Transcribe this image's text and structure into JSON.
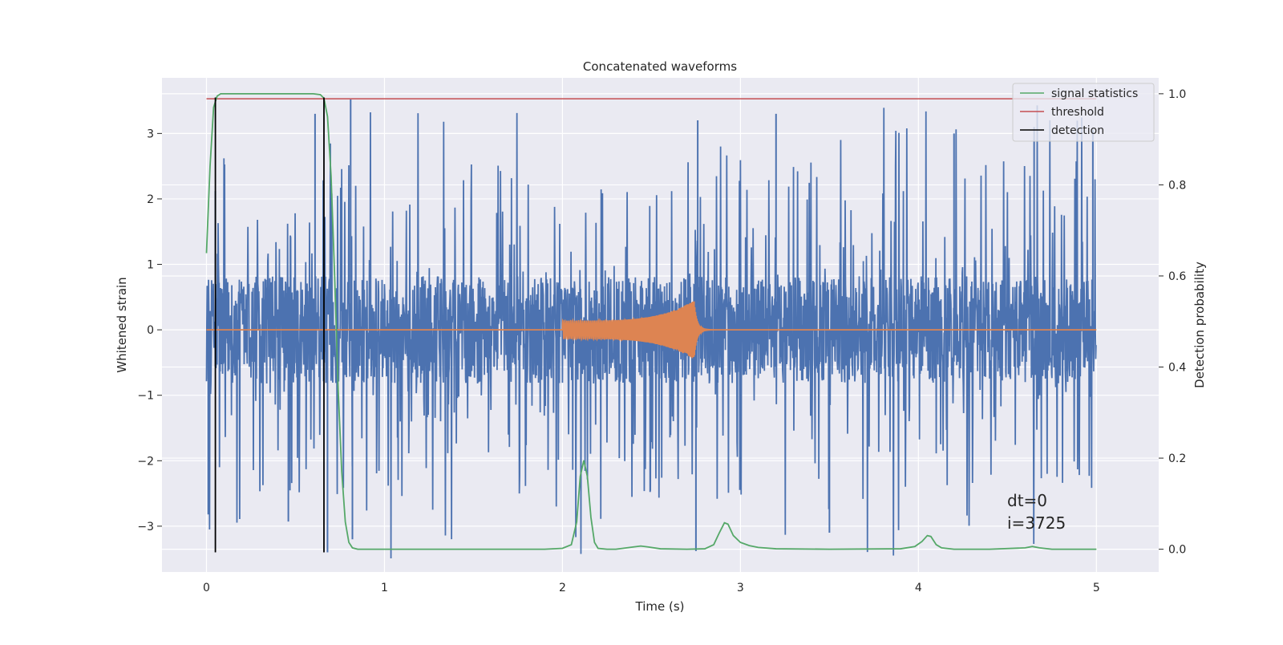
{
  "chart_data": {
    "type": "line",
    "title": "Concatenated waveforms",
    "xlabel": "Time (s)",
    "ylabel_left": "Whitened strain",
    "ylabel_right": "Detection probability",
    "xlim": [
      -0.25,
      5.35
    ],
    "ylim_left": [
      -3.7,
      3.85
    ],
    "ylim_right": [
      -0.05,
      1.035
    ],
    "x_ticks": [
      0,
      1,
      2,
      3,
      4,
      5
    ],
    "y_left_ticks": [
      -3,
      -2,
      -1,
      0,
      1,
      2,
      3
    ],
    "y_left_tick_labels": [
      "−3",
      "−2",
      "−1",
      "0",
      "1",
      "2",
      "3"
    ],
    "y_right_ticks": [
      0.0,
      0.2,
      0.4,
      0.6,
      0.8,
      1.0
    ],
    "y_right_tick_labels": [
      "0.0",
      "0.2",
      "0.4",
      "0.6",
      "0.8",
      "1.0"
    ],
    "grid": true,
    "legend_position": "top-right",
    "colors": {
      "strain": "#4c72b0",
      "injection": "#dd8452",
      "signal_statistics": "#55a868",
      "threshold": "#c44e52",
      "detection": "#000000",
      "plot_background": "#eaeaf2",
      "grid": "#ffffff"
    },
    "series": [
      {
        "name": "signal statistics",
        "axis": "right",
        "x": [
          0.0,
          0.02,
          0.04,
          0.06,
          0.08,
          0.1,
          0.2,
          0.4,
          0.6,
          0.64,
          0.66,
          0.68,
          0.7,
          0.72,
          0.74,
          0.76,
          0.78,
          0.8,
          0.82,
          0.85,
          0.9,
          1.0,
          1.5,
          1.9,
          2.0,
          2.05,
          2.08,
          2.1,
          2.12,
          2.14,
          2.16,
          2.18,
          2.2,
          2.25,
          2.3,
          2.4,
          2.44,
          2.48,
          2.55,
          2.7,
          2.8,
          2.85,
          2.88,
          2.91,
          2.93,
          2.96,
          3.0,
          3.05,
          3.1,
          3.2,
          3.5,
          3.9,
          3.98,
          4.02,
          4.05,
          4.07,
          4.1,
          4.13,
          4.2,
          4.4,
          4.6,
          4.64,
          4.68,
          4.75,
          5.0
        ],
        "values": [
          0.65,
          0.84,
          0.97,
          0.995,
          1.0,
          1.0,
          1.0,
          1.0,
          1.0,
          0.998,
          0.99,
          0.95,
          0.82,
          0.6,
          0.35,
          0.17,
          0.06,
          0.015,
          0.003,
          0.0,
          0.0,
          0.0,
          0.0,
          0.0,
          0.002,
          0.01,
          0.06,
          0.16,
          0.195,
          0.16,
          0.07,
          0.015,
          0.002,
          0.0,
          0.0,
          0.005,
          0.007,
          0.005,
          0.001,
          0.0,
          0.001,
          0.01,
          0.035,
          0.058,
          0.055,
          0.03,
          0.015,
          0.008,
          0.004,
          0.001,
          0.0,
          0.001,
          0.006,
          0.017,
          0.03,
          0.028,
          0.01,
          0.003,
          0.0,
          0.0,
          0.003,
          0.006,
          0.003,
          0.0,
          0.0
        ]
      },
      {
        "name": "threshold",
        "axis": "right",
        "x": [
          0.0,
          5.0
        ],
        "values": [
          0.989,
          0.989
        ]
      },
      {
        "name": "detection",
        "axis": "left",
        "segments": [
          {
            "x": 0.05,
            "y": [
              -3.4,
              3.55
            ]
          },
          {
            "x": 0.66,
            "y": [
              -3.4,
              3.55
            ]
          }
        ]
      },
      {
        "axis": "left",
        "role": "strain",
        "x_range": [
          0.0,
          5.0
        ],
        "envelope": {
          "core_amplitude": 0.82,
          "typical_peak_amplitude": 2.6,
          "max_amplitude": 3.5
        },
        "extreme_spikes": [
          {
            "x": 0.01,
            "y": -2.82
          },
          {
            "x": 0.05,
            "y": 2.12
          },
          {
            "x": 0.46,
            "y": -2.93
          },
          {
            "x": 0.61,
            "y": 3.3
          },
          {
            "x": 0.68,
            "y": -3.4
          },
          {
            "x": 0.81,
            "y": 3.52
          },
          {
            "x": 0.82,
            "y": -3.2
          },
          {
            "x": 2.75,
            "y": -3.38
          },
          {
            "x": 2.76,
            "y": 3.2
          },
          {
            "x": 3.2,
            "y": 3.3
          },
          {
            "x": 3.5,
            "y": -3.1
          },
          {
            "x": 4.2,
            "y": 3.0
          },
          {
            "x": 4.65,
            "y": 3.1
          },
          {
            "x": 4.98,
            "y": 3.05
          }
        ]
      },
      {
        "axis": "left",
        "role": "injected waveform",
        "x_range": [
          2.0,
          2.9
        ],
        "peak_time": 2.74,
        "peak_amplitude": 0.45,
        "start_amplitude": 0.14
      }
    ],
    "annotations": [
      "dt=0",
      "i=3725"
    ]
  }
}
